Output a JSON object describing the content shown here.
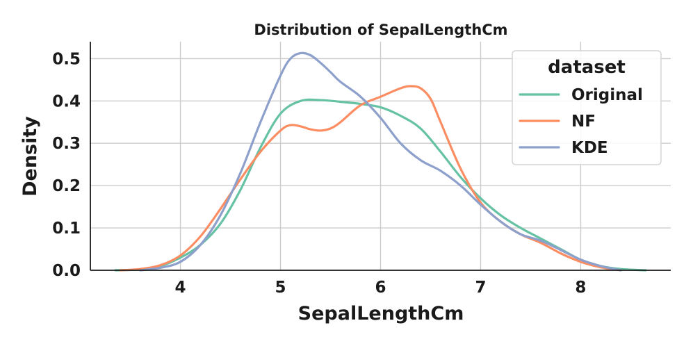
{
  "chart_data": {
    "type": "line",
    "title": "Distribution of SepalLengthCm",
    "xlabel": "SepalLengthCm",
    "ylabel": "Density",
    "xlim": [
      3.1,
      8.9
    ],
    "ylim": [
      0,
      0.54
    ],
    "x_ticks": [
      4,
      5,
      6,
      7,
      8
    ],
    "y_ticks": [
      0.0,
      0.1,
      0.2,
      0.3,
      0.4,
      0.5
    ],
    "x_tick_labels": [
      "4",
      "5",
      "6",
      "7",
      "8"
    ],
    "y_tick_labels": [
      "0.0",
      "0.1",
      "0.2",
      "0.3",
      "0.4",
      "0.5"
    ],
    "grid": true,
    "legend": {
      "title": "dataset",
      "position": "top-right"
    },
    "series": [
      {
        "name": "Original",
        "color": "#66c2a5",
        "x": [
          3.35,
          3.6,
          3.8,
          4.0,
          4.2,
          4.4,
          4.6,
          4.8,
          5.0,
          5.2,
          5.4,
          5.6,
          5.8,
          6.0,
          6.2,
          6.4,
          6.6,
          6.8,
          7.0,
          7.2,
          7.4,
          7.6,
          7.8,
          8.0,
          8.2,
          8.4,
          8.65
        ],
        "values": [
          0.0,
          0.002,
          0.01,
          0.03,
          0.06,
          0.11,
          0.19,
          0.29,
          0.37,
          0.4,
          0.402,
          0.398,
          0.393,
          0.385,
          0.365,
          0.335,
          0.28,
          0.22,
          0.17,
          0.13,
          0.1,
          0.075,
          0.05,
          0.025,
          0.01,
          0.003,
          0.0
        ]
      },
      {
        "name": "NF",
        "color": "#fc8d62",
        "x": [
          3.4,
          3.6,
          3.8,
          4.0,
          4.2,
          4.4,
          4.6,
          4.8,
          5.0,
          5.1,
          5.2,
          5.3,
          5.4,
          5.5,
          5.6,
          5.8,
          6.0,
          6.2,
          6.3,
          6.4,
          6.5,
          6.6,
          6.8,
          7.0,
          7.2,
          7.4,
          7.6,
          7.8,
          8.0,
          8.2,
          8.4
        ],
        "values": [
          0.0,
          0.003,
          0.012,
          0.035,
          0.08,
          0.145,
          0.215,
          0.28,
          0.33,
          0.343,
          0.34,
          0.333,
          0.33,
          0.335,
          0.35,
          0.39,
          0.41,
          0.43,
          0.435,
          0.43,
          0.405,
          0.35,
          0.24,
          0.16,
          0.115,
          0.085,
          0.065,
          0.04,
          0.02,
          0.007,
          0.0
        ]
      },
      {
        "name": "KDE",
        "color": "#8da0cb",
        "x": [
          3.6,
          3.8,
          4.0,
          4.2,
          4.4,
          4.6,
          4.8,
          5.0,
          5.1,
          5.2,
          5.3,
          5.4,
          5.5,
          5.6,
          5.8,
          6.0,
          6.2,
          6.4,
          6.6,
          6.8,
          7.0,
          7.2,
          7.4,
          7.6,
          7.8,
          8.0,
          8.2,
          8.4
        ],
        "values": [
          0.0,
          0.006,
          0.02,
          0.06,
          0.13,
          0.23,
          0.35,
          0.46,
          0.5,
          0.513,
          0.508,
          0.49,
          0.468,
          0.445,
          0.41,
          0.36,
          0.3,
          0.26,
          0.235,
          0.2,
          0.155,
          0.115,
          0.085,
          0.07,
          0.048,
          0.025,
          0.01,
          0.0
        ]
      }
    ]
  }
}
